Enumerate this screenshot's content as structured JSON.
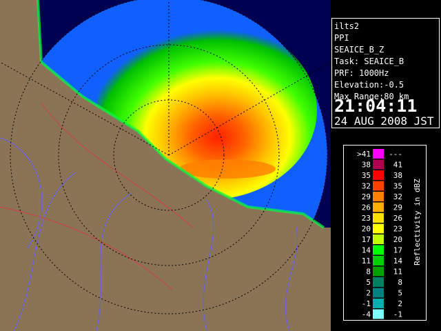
{
  "info": {
    "lines": [
      "ilts2",
      "PPI",
      "SEAICE_B_Z",
      "Task: SEAICE_B",
      "PRF: 1000Hz",
      "Elevation:-0.5",
      "Max Range:80 km"
    ],
    "time": "21:04:11",
    "date": "24 AUG 2008 JST"
  },
  "legend": {
    "title": "Reflectivity in dBZ",
    "rows": [
      {
        "low": ">41",
        "high": "---",
        "color": "#ff00ff"
      },
      {
        "low": "38",
        "high": "41",
        "color": "#b00050"
      },
      {
        "low": "35",
        "high": "38",
        "color": "#ff0000"
      },
      {
        "low": "32",
        "high": "35",
        "color": "#ff4000"
      },
      {
        "low": "29",
        "high": "32",
        "color": "#ff8000"
      },
      {
        "low": "26",
        "high": "29",
        "color": "#ffb000"
      },
      {
        "low": "23",
        "high": "26",
        "color": "#ffe000"
      },
      {
        "low": "20",
        "high": "23",
        "color": "#ffff00"
      },
      {
        "low": "17",
        "high": "20",
        "color": "#c0ff00"
      },
      {
        "low": "14",
        "high": "17",
        "color": "#00ff00"
      },
      {
        "low": "11",
        "high": "14",
        "color": "#00d000"
      },
      {
        "low": "8",
        "high": "11",
        "color": "#00a000"
      },
      {
        "low": "5",
        "high": "8",
        "color": "#008060"
      },
      {
        "low": "2",
        "high": "5",
        "color": "#008080"
      },
      {
        "low": "-1",
        "high": "2",
        "color": "#00b0b0"
      },
      {
        "low": "-4",
        "high": "-1",
        "color": "#80ffff"
      }
    ]
  }
}
